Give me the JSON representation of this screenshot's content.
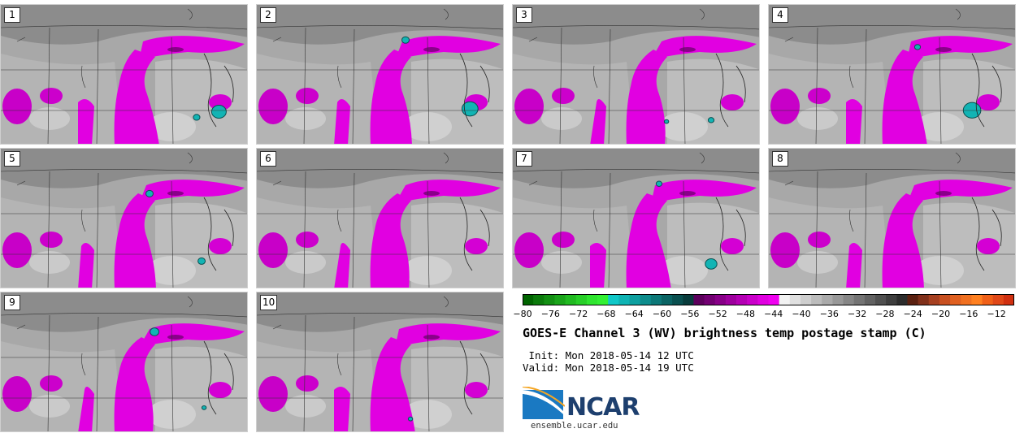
{
  "panels": [
    {
      "number": "1",
      "cyan": [
        [
          0.88,
          0.76,
          1.0
        ],
        [
          0.79,
          0.8,
          0.45
        ]
      ]
    },
    {
      "number": "2",
      "cyan": [
        [
          0.86,
          0.74,
          1.1
        ],
        [
          0.6,
          0.25,
          0.5
        ]
      ]
    },
    {
      "number": "3",
      "cyan": [
        [
          0.8,
          0.82,
          0.4
        ],
        [
          0.62,
          0.83,
          0.3
        ]
      ]
    },
    {
      "number": "4",
      "cyan": [
        [
          0.82,
          0.75,
          1.2
        ],
        [
          0.6,
          0.3,
          0.4
        ]
      ]
    },
    {
      "number": "5",
      "cyan": [
        [
          0.81,
          0.8,
          0.5
        ],
        [
          0.6,
          0.32,
          0.5
        ]
      ]
    },
    {
      "number": "6",
      "cyan": []
    },
    {
      "number": "7",
      "cyan": [
        [
          0.8,
          0.82,
          0.8
        ],
        [
          0.59,
          0.25,
          0.4
        ]
      ]
    },
    {
      "number": "8",
      "cyan": []
    },
    {
      "number": "9",
      "cyan": [
        [
          0.82,
          0.82,
          0.3
        ],
        [
          0.62,
          0.28,
          0.6
        ]
      ]
    },
    {
      "number": "10",
      "cyan": [
        [
          0.62,
          0.9,
          0.3
        ]
      ]
    }
  ],
  "colorbar": {
    "ticks": [
      "−80",
      "−76",
      "−72",
      "−68",
      "−64",
      "−60",
      "−56",
      "−52",
      "−48",
      "−44",
      "−40",
      "−36",
      "−32",
      "−28",
      "−24",
      "−20",
      "−16",
      "−12"
    ],
    "colors": [
      "#006400",
      "#0b7a0b",
      "#138f13",
      "#1aa41a",
      "#21ba21",
      "#28cf28",
      "#2fe52f",
      "#33f033",
      "#10c8c8",
      "#0fb4b4",
      "#0ea0a0",
      "#0d8c8c",
      "#0c7878",
      "#0b6464",
      "#0a5050",
      "#093c3c",
      "#5c005c",
      "#720072",
      "#880088",
      "#9e009e",
      "#b400b4",
      "#ca00ca",
      "#e000e0",
      "#f000f0",
      "#f2f2f2",
      "#e0e0e0",
      "#cecece",
      "#bcbcbc",
      "#aaaaaa",
      "#989898",
      "#868686",
      "#747474",
      "#626262",
      "#505050",
      "#3e3e3e",
      "#2c2c2c",
      "#5a2010",
      "#80301a",
      "#a64020",
      "#c85020",
      "#e06020",
      "#f07020",
      "#ff8020",
      "#f06018",
      "#e04818",
      "#d03010"
    ]
  },
  "title": "GOES-E Channel 3 (WV) brightness temp postage stamp (C)",
  "init": " Init: Mon 2018-05-14 12 UTC",
  "valid": "Valid: Mon 2018-05-14 19 UTC",
  "logo": {
    "text": "NCAR",
    "url": "ensemble.ucar.edu"
  }
}
